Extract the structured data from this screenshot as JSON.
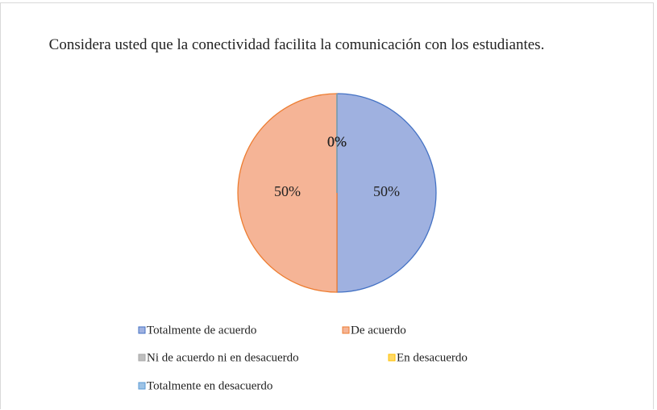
{
  "chart_data": {
    "type": "pie",
    "title": "Considera usted que la conectividad facilita la comunicación con los estudiantes.",
    "categories": [
      "Totalmente de acuerdo",
      "De acuerdo",
      "Ni de acuerdo ni en desacuerdo",
      "En desacuerdo",
      "Totalmente en desacuerdo"
    ],
    "values": [
      50,
      50,
      0,
      0,
      0
    ],
    "value_labels": [
      "50%",
      "50%",
      "0%",
      "0%",
      "0%"
    ],
    "colors": [
      "#9fb1e0",
      "#f5b496",
      "#bfbfbf",
      "#ffd966",
      "#9dc3e6"
    ]
  }
}
